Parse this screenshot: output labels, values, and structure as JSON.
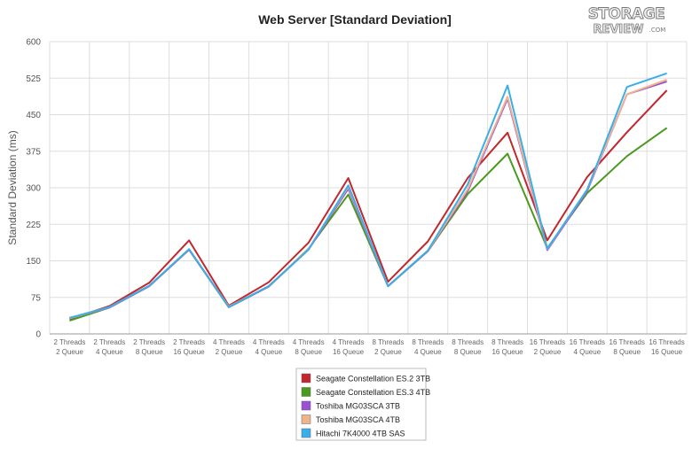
{
  "logo": {
    "line1": "STORAGE",
    "line2": "REVIEW",
    "suffix": ".COM"
  },
  "chart_data": {
    "type": "line",
    "title": "Web Server [Standard Deviation]",
    "xlabel": "",
    "ylabel": "Standard Deviation (ms)",
    "ylim": [
      0,
      600
    ],
    "yticks": [
      0,
      75,
      150,
      225,
      300,
      375,
      450,
      525,
      600
    ],
    "grid": true,
    "legend_position": "bottom-center",
    "categories": [
      [
        "2 Threads",
        "2 Queue"
      ],
      [
        "2 Threads",
        "4 Queue"
      ],
      [
        "2 Threads",
        "8 Queue"
      ],
      [
        "2 Threads",
        "16 Queue"
      ],
      [
        "4 Threads",
        "2 Queue"
      ],
      [
        "4 Threads",
        "4 Queue"
      ],
      [
        "4 Threads",
        "8 Queue"
      ],
      [
        "4 Threads",
        "16 Queue"
      ],
      [
        "8 Threads",
        "2 Queue"
      ],
      [
        "8 Threads",
        "4 Queue"
      ],
      [
        "8 Threads",
        "8 Queue"
      ],
      [
        "8 Threads",
        "16 Queue"
      ],
      [
        "16 Threads",
        "2 Queue"
      ],
      [
        "16 Threads",
        "4 Queue"
      ],
      [
        "16 Threads",
        "8 Queue"
      ],
      [
        "16 Threads",
        "16 Queue"
      ]
    ],
    "series": [
      {
        "name": "Seagate Constellation ES.2 3TB",
        "color": "#c1272d",
        "values": [
          30,
          57,
          105,
          192,
          58,
          106,
          187,
          320,
          107,
          190,
          320,
          413,
          192,
          322,
          414,
          500
        ]
      },
      {
        "name": "Seagate Constellation ES.3 4TB",
        "color": "#4a9a1e",
        "values": [
          27,
          54,
          98,
          173,
          55,
          97,
          175,
          286,
          98,
          170,
          287,
          370,
          176,
          289,
          365,
          423
        ]
      },
      {
        "name": "Toshiba MG03SCA 3TB",
        "color": "#9b4fd6",
        "values": [
          32,
          54,
          98,
          173,
          55,
          97,
          173,
          298,
          98,
          170,
          293,
          483,
          172,
          293,
          492,
          518
        ]
      },
      {
        "name": "Toshiba MG03SCA 4TB",
        "color": "#f0b48c",
        "values": [
          32,
          55,
          99,
          174,
          56,
          98,
          174,
          302,
          99,
          171,
          297,
          487,
          174,
          296,
          492,
          522
        ]
      },
      {
        "name": "Hitachi 7K4000 4TB SAS",
        "color": "#3aaee8",
        "values": [
          33,
          55,
          99,
          174,
          55,
          98,
          173,
          305,
          98,
          171,
          307,
          510,
          175,
          296,
          507,
          535
        ]
      }
    ]
  }
}
